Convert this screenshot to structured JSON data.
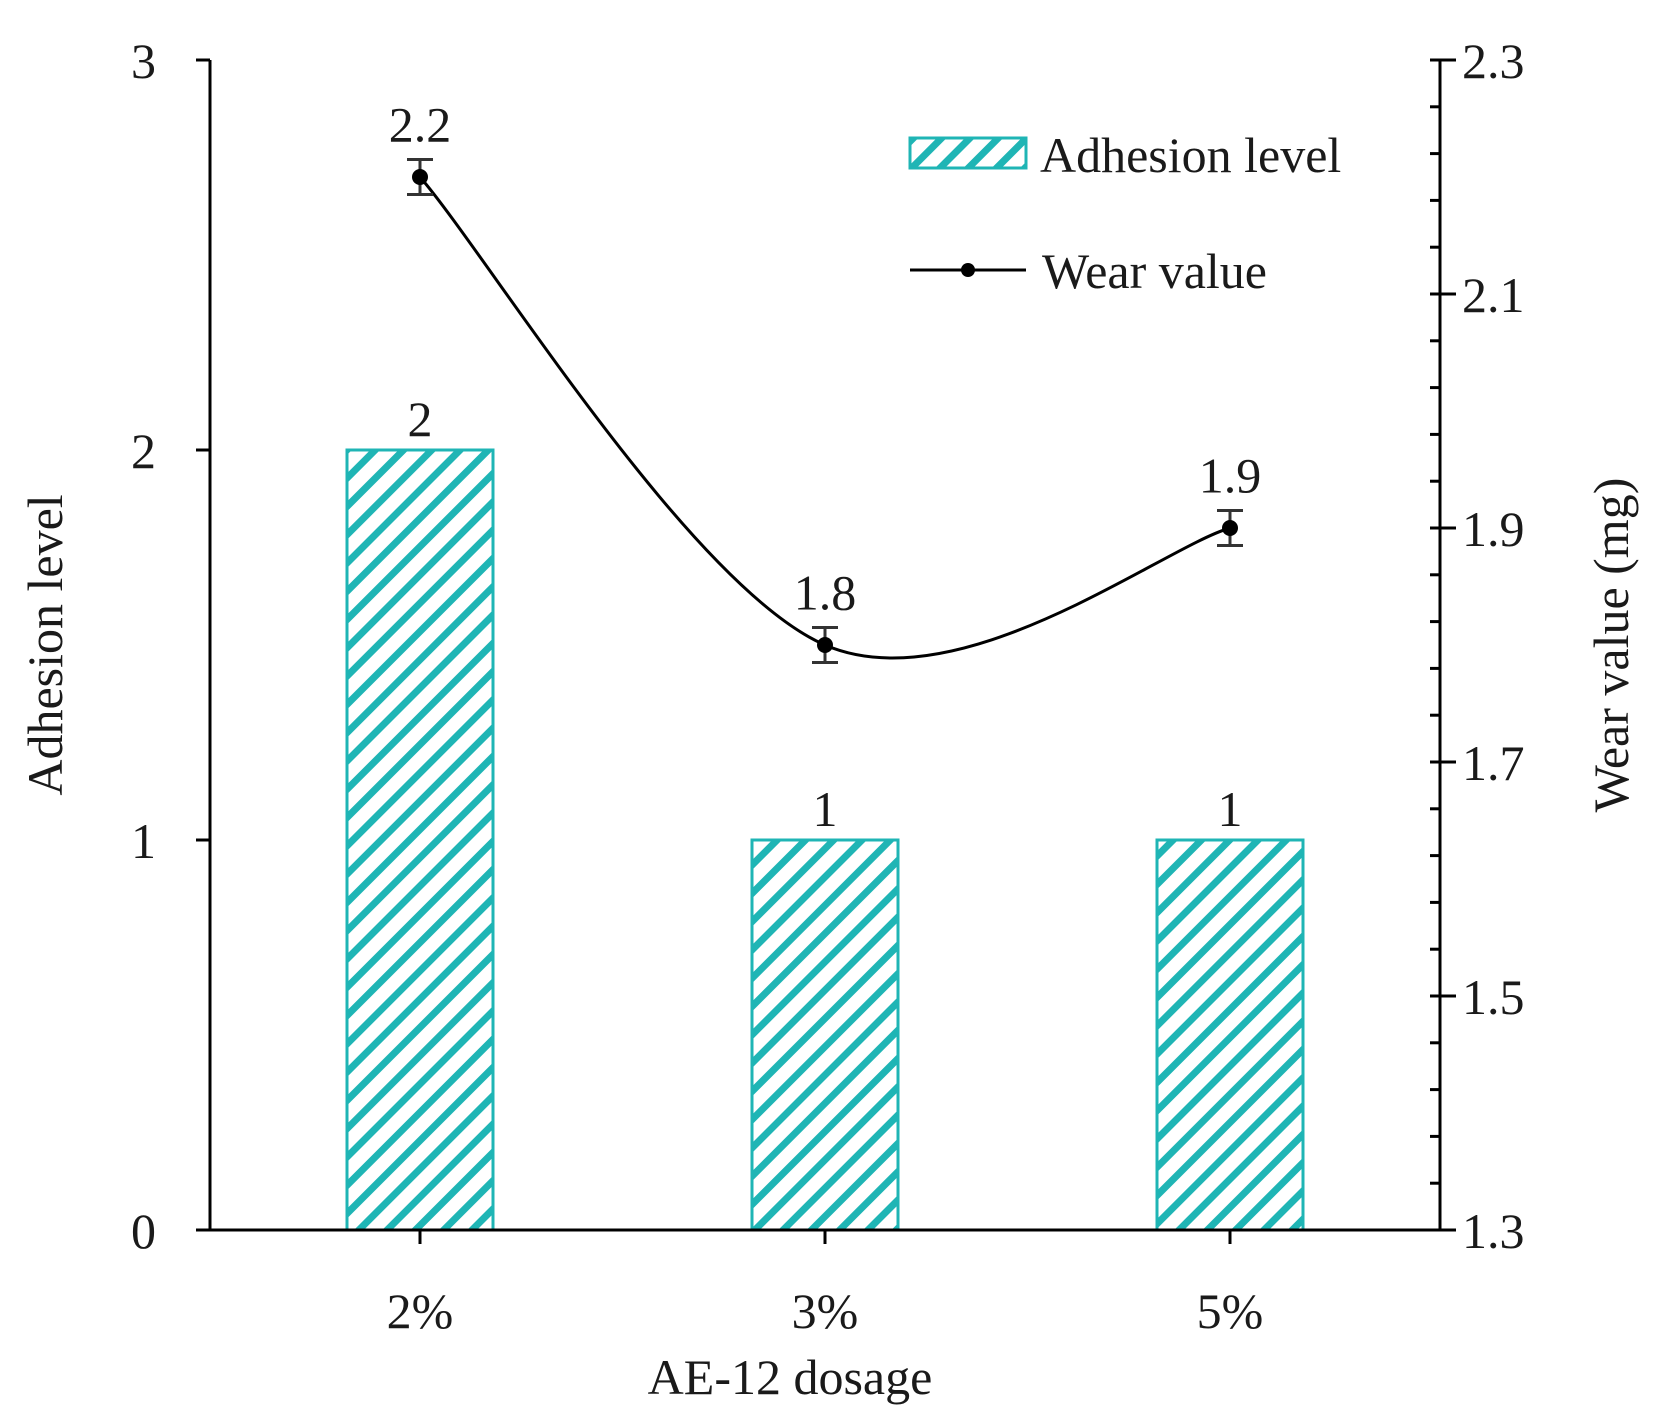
{
  "chart_data": {
    "type": "bar+line",
    "categories": [
      "2%",
      "3%",
      "5%"
    ],
    "xlabel": "AE-12 dosage",
    "bar_series": {
      "name": "Adhesion level",
      "values": [
        2,
        1,
        1
      ],
      "labels": [
        "2",
        "1",
        "1"
      ],
      "color": "#1fb5b5",
      "pattern": "diagonal-hatch",
      "axis": "left"
    },
    "line_series": {
      "name": "Wear value",
      "values": [
        2.2,
        1.8,
        1.9
      ],
      "labels": [
        "2.2",
        "1.8",
        "1.9"
      ],
      "error": [
        0.015,
        0.015,
        0.015
      ],
      "color": "#000000",
      "axis": "right",
      "smooth": true
    },
    "left_axis": {
      "label": "Adhesion level",
      "min": 0,
      "max": 3,
      "ticks": [
        0,
        1,
        2,
        3
      ],
      "tick_labels": [
        "0",
        "1",
        "2",
        "3"
      ]
    },
    "right_axis": {
      "label": "Wear value (mg)",
      "min": 1.3,
      "max": 2.3,
      "ticks": [
        1.3,
        1.5,
        1.7,
        1.9,
        2.1,
        2.3
      ],
      "tick_labels": [
        "1.3",
        "1.5",
        "1.7",
        "1.9",
        "2.1",
        "2.3"
      ],
      "minor_step": 0.04
    },
    "legend": {
      "position": "top-right",
      "entries": [
        "Adhesion level",
        "Wear value"
      ]
    },
    "grid": false
  }
}
